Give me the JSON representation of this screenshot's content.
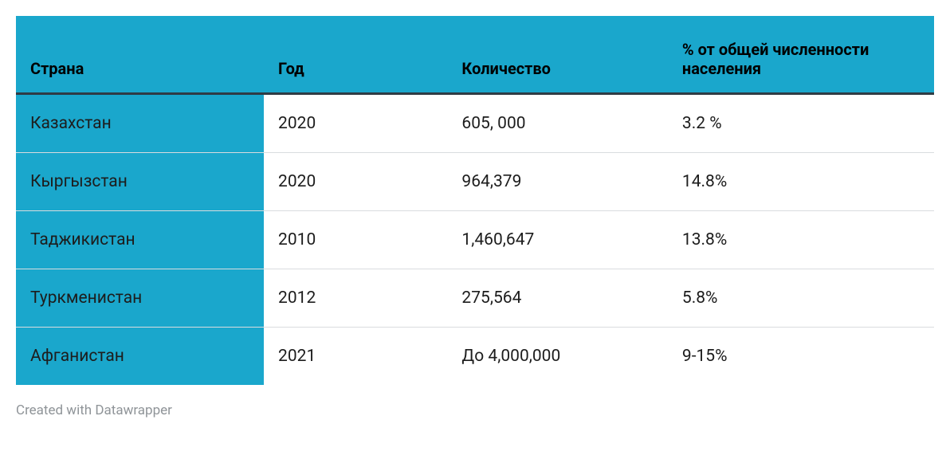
{
  "table": {
    "type": "table",
    "columns": [
      {
        "label": "Страна",
        "width_pct": 27,
        "align": "left"
      },
      {
        "label": "Год",
        "width_pct": 20,
        "align": "left"
      },
      {
        "label": "Количество",
        "width_pct": 24,
        "align": "left"
      },
      {
        "label": "% от общей численности населения",
        "width_pct": 29,
        "align": "left"
      }
    ],
    "rows": [
      [
        "Казахстан",
        "2020",
        "605, 000",
        "3.2 %"
      ],
      [
        "Кыргызстан",
        "2020",
        "964,379",
        "14.8%"
      ],
      [
        "Таджикистан",
        "2010",
        "1,460,647",
        "13.8%"
      ],
      [
        "Туркменистан",
        "2012",
        "275,564",
        "5.8%"
      ],
      [
        "Афганистан",
        "2021",
        "До 4,000,000",
        "9-15%"
      ]
    ],
    "styling": {
      "header_bg": "#1aa7cc",
      "header_text": "#000000",
      "header_border_bottom": "#2f3b44",
      "first_col_bg": "#1aa7cc",
      "first_col_text": "#1d1d1d",
      "body_text": "#1d1d1d",
      "row_border": "#d9dcdf",
      "background_color": "#ffffff",
      "header_fontsize_pt": 15,
      "body_fontsize_pt": 16,
      "header_fontweight": 700,
      "body_fontweight": 400
    }
  },
  "attribution": {
    "text": "Created with Datawrapper",
    "color": "#8f9498",
    "fontsize_pt": 13
  }
}
